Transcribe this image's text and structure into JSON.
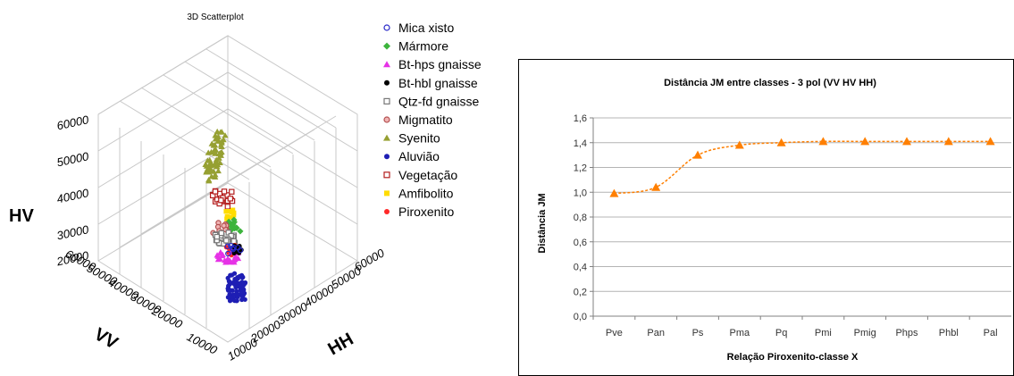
{
  "scatter": {
    "title": "3D Scatterplot",
    "axis_labels": {
      "hv": "HV",
      "vv": "VV",
      "hh": "HH"
    },
    "hv_ticks": [
      "60000",
      "50000",
      "40000",
      "30000",
      "20000"
    ],
    "vv_ticks": [
      "60000",
      "50000",
      "40000",
      "30000",
      "20000",
      "10000"
    ],
    "hh_ticks": [
      "10000",
      "20000",
      "30000",
      "40000",
      "50000",
      "60000"
    ],
    "legend": [
      {
        "label": "Mica xisto",
        "marker": "ring",
        "color": "#2828c8"
      },
      {
        "label": "Mármore",
        "marker": "diamond",
        "color": "#3cb43c"
      },
      {
        "label": "Bt-hps gnaisse",
        "marker": "triangle",
        "color": "#e632e6"
      },
      {
        "label": "Bt-hbl gnaisse",
        "marker": "dot",
        "color": "#000000"
      },
      {
        "label": "Qtz-fd gnaisse",
        "marker": "square-open",
        "color": "#787878"
      },
      {
        "label": "Migmatito",
        "marker": "ring-filled",
        "color": "#b45050"
      },
      {
        "label": "Syenito",
        "marker": "triangle",
        "color": "#96a032"
      },
      {
        "label": "Aluvião",
        "marker": "dot",
        "color": "#1e1eb4"
      },
      {
        "label": "Vegetação",
        "marker": "square-open",
        "color": "#b41e1e"
      },
      {
        "label": "Amfibolito",
        "marker": "square",
        "color": "#ffdc00"
      },
      {
        "label": "Piroxenito",
        "marker": "dot",
        "color": "#ff2828"
      }
    ]
  },
  "chart_data": {
    "type": "line",
    "title": "Distância JM entre classes - 3 pol (VV HV HH)",
    "xlabel": "Relação Piroxenito-classe X",
    "ylabel": "Distância JM",
    "categories": [
      "Pve",
      "Pan",
      "Ps",
      "Pma",
      "Pq",
      "Pmi",
      "Pmig",
      "Phps",
      "Phbl",
      "Pal"
    ],
    "series": [
      {
        "values": [
          0.99,
          1.04,
          1.3,
          1.38,
          1.4,
          1.41,
          1.41,
          1.41,
          1.41,
          1.41
        ]
      }
    ],
    "ylim": [
      0,
      1.6
    ],
    "yticks": [
      "0,0",
      "0,2",
      "0,4",
      "0,6",
      "0,8",
      "1,0",
      "1,2",
      "1,4",
      "1,6"
    ],
    "grid": true,
    "color": "#ff7f00"
  }
}
